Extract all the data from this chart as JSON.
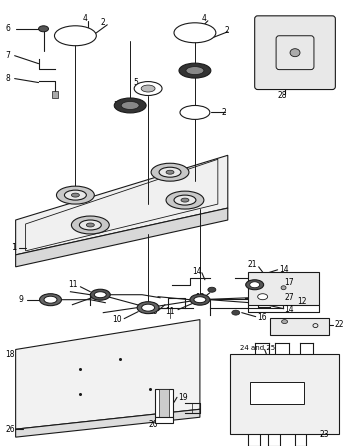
{
  "title": "",
  "bg_color": "#ffffff",
  "line_color": "#1a1a1a",
  "fig_width": 3.5,
  "fig_height": 4.47,
  "dpi": 100
}
